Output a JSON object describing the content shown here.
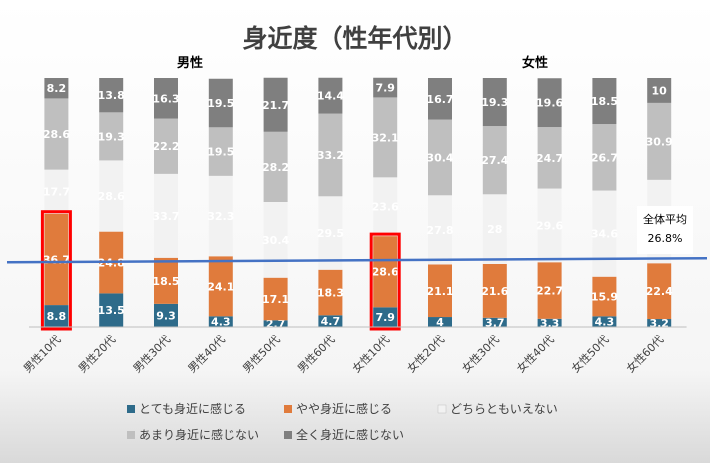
{
  "chart_data": {
    "type": "bar",
    "stacked": true,
    "title": "身近度（性年代別）",
    "group_labels": {
      "male": "男性",
      "female": "女性"
    },
    "categories": [
      "男性10代",
      "男性20代",
      "男性30代",
      "男性40代",
      "男性50代",
      "男性60代",
      "女性10代",
      "女性20代",
      "女性30代",
      "女性40代",
      "女性50代",
      "女性60代"
    ],
    "ylim": [
      0,
      100
    ],
    "series": [
      {
        "name": "とても身近に感じる",
        "color": "#2e6b8a",
        "values": [
          8.8,
          13.5,
          9.3,
          4.3,
          2.7,
          4.7,
          7.9,
          4.0,
          3.7,
          3.3,
          4.3,
          3.2
        ]
      },
      {
        "name": "やや身近に感じる",
        "color": "#e07b3c",
        "values": [
          36.7,
          24.8,
          18.5,
          24.1,
          17.1,
          18.3,
          28.6,
          21.1,
          21.6,
          22.7,
          15.9,
          22.4
        ]
      },
      {
        "name": "どちらともいえない",
        "color": "#f2f2f2",
        "values": [
          17.7,
          28.6,
          33.7,
          32.3,
          30.4,
          29.5,
          23.6,
          27.8,
          28.0,
          29.6,
          34.6,
          33.5
        ]
      },
      {
        "name": "あまり身近に感じない",
        "color": "#bfbfbf",
        "values": [
          28.6,
          19.3,
          22.2,
          19.5,
          28.2,
          33.2,
          32.1,
          30.4,
          27.4,
          24.7,
          26.7,
          30.9
        ]
      },
      {
        "name": "全く身近に感じない",
        "color": "#7f7f7f",
        "values": [
          8.2,
          13.8,
          16.3,
          19.5,
          21.7,
          14.4,
          7.9,
          16.7,
          19.3,
          19.6,
          18.5,
          10.0
        ]
      }
    ],
    "reference_line": {
      "value": 26.8,
      "label_line1": "全体平均",
      "label_line2": "26.8%",
      "color": "#4472c4"
    },
    "highlighted_categories": [
      "男性10代",
      "女性10代"
    ],
    "highlight_color": "#ff0000",
    "legend_position": "bottom",
    "grid": false
  }
}
